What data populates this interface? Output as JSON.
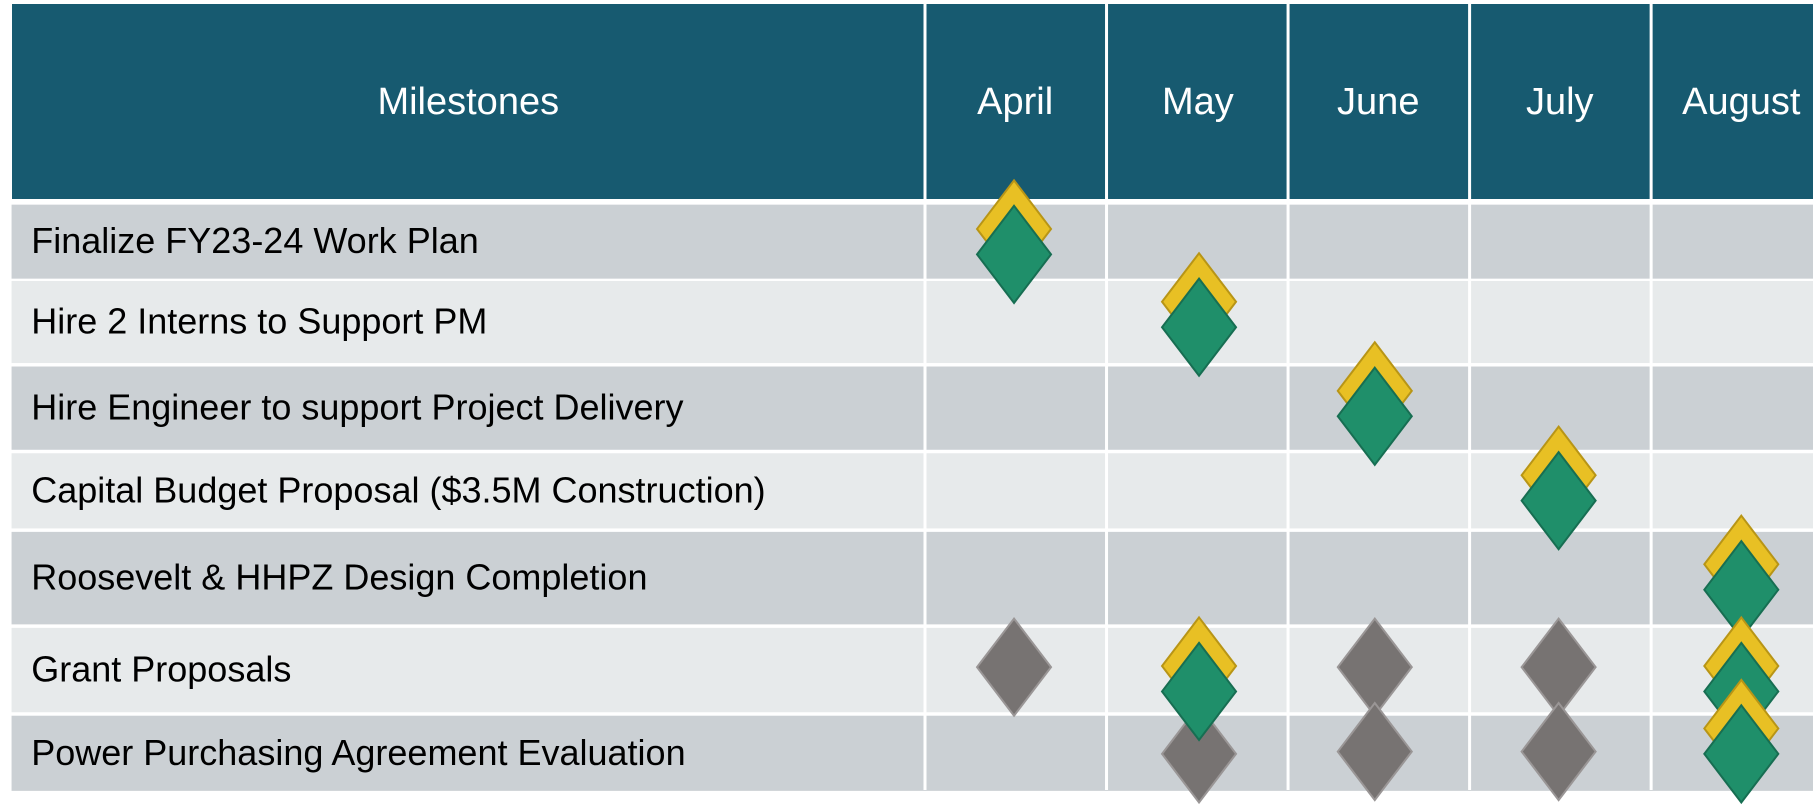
{
  "header": {
    "title": "Milestones",
    "months": [
      "April",
      "May",
      "June",
      "July",
      "August"
    ]
  },
  "rows": [
    "Finalize FY23-24 Work Plan",
    "Hire 2 Interns to Support PM",
    "Hire Engineer to support Project Delivery",
    "Capital Budget Proposal ($3.5M Construction)",
    "Roosevelt & HHPZ Design Completion",
    "Grant Proposals",
    "Power Purchasing Agreement Evaluation"
  ]
}
